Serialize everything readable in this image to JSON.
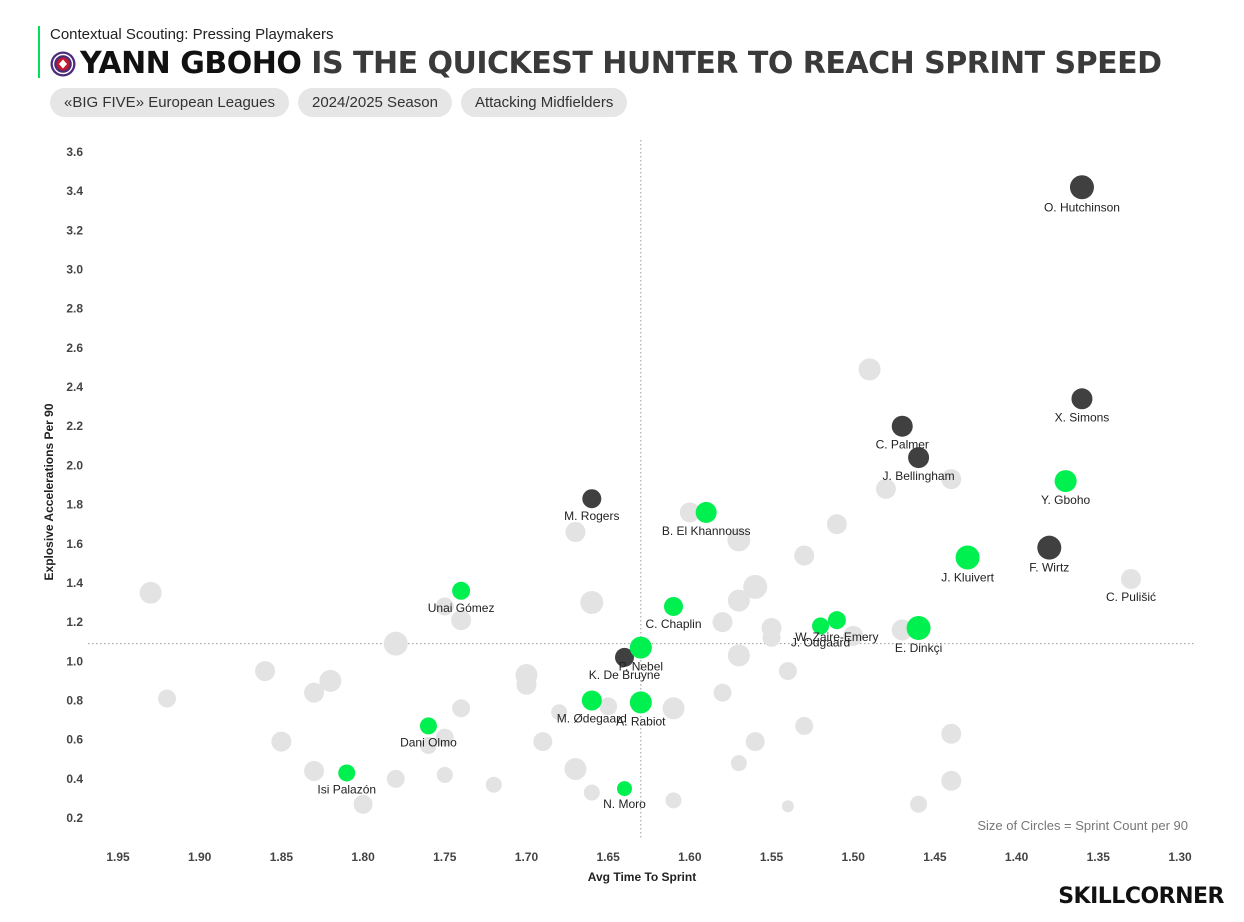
{
  "header": {
    "subtitle": "Contextual Scouting: Pressing Playmakers",
    "title_highlight": "YANN GBOHO",
    "title_rest": " IS THE QUICKEST HUNTER TO REACH SPRINT SPEED",
    "accent_color": "#00e05a"
  },
  "filters": [
    "«BIG FIVE» European Leagues",
    "2024/2025 Season",
    "Attacking Midfielders"
  ],
  "size_note": "Size of Circles = Sprint Count per 90",
  "brand": "SKILLCORNER",
  "chart_data": {
    "type": "scatter",
    "xlabel": "Avg Time To Sprint",
    "ylabel": "Explosive Accelerations Per 90",
    "xlim": [
      1.97,
      1.29
    ],
    "ylim": [
      0.16,
      3.66
    ],
    "x_reversed": true,
    "x_ticks": [
      "1.95",
      "1.90",
      "1.85",
      "1.80",
      "1.75",
      "1.70",
      "1.65",
      "1.60",
      "1.55",
      "1.50",
      "1.45",
      "1.40",
      "1.35",
      "1.30"
    ],
    "y_ticks": [
      "0.2",
      "0.4",
      "0.6",
      "0.8",
      "1.0",
      "1.2",
      "1.4",
      "1.6",
      "1.8",
      "2.0",
      "2.2",
      "2.4",
      "2.6",
      "2.8",
      "3.0",
      "3.2",
      "3.4",
      "3.6"
    ],
    "reference_lines": {
      "x": 1.63,
      "y": 1.09
    },
    "colors": {
      "highlight": "#00f050",
      "top": "#404040",
      "other": "#e3e3e3"
    },
    "highlighted": [
      {
        "name": "Y. Gboho",
        "x": 1.37,
        "y": 1.92,
        "size": 1.1
      },
      {
        "name": "J. Kluivert",
        "x": 1.43,
        "y": 1.53,
        "size": 1.2
      },
      {
        "name": "E. Dinkçi",
        "x": 1.46,
        "y": 1.17,
        "size": 1.2
      },
      {
        "name": "W. Zaire-Emery",
        "x": 1.51,
        "y": 1.21,
        "size": 0.9
      },
      {
        "name": "J. Odgaard",
        "x": 1.52,
        "y": 1.18,
        "size": 0.85
      },
      {
        "name": "B. El Khannouss",
        "x": 1.59,
        "y": 1.76,
        "size": 1.05
      },
      {
        "name": "C. Chaplin",
        "x": 1.61,
        "y": 1.28,
        "size": 0.95
      },
      {
        "name": "P. Nebel",
        "x": 1.63,
        "y": 1.07,
        "size": 1.1
      },
      {
        "name": "M. Ødegaard",
        "x": 1.66,
        "y": 0.8,
        "size": 1.0
      },
      {
        "name": "A. Rabiot",
        "x": 1.63,
        "y": 0.79,
        "size": 1.1
      },
      {
        "name": "Unai Gómez",
        "x": 1.74,
        "y": 1.36,
        "size": 0.9
      },
      {
        "name": "Dani Olmo",
        "x": 1.76,
        "y": 0.67,
        "size": 0.85
      },
      {
        "name": "Isi Palazón",
        "x": 1.81,
        "y": 0.43,
        "size": 0.85
      },
      {
        "name": "N. Moro",
        "x": 1.64,
        "y": 0.35,
        "size": 0.75
      }
    ],
    "top_players": [
      {
        "name": "O. Hutchinson",
        "x": 1.36,
        "y": 3.42,
        "size": 1.2
      },
      {
        "name": "X. Simons",
        "x": 1.36,
        "y": 2.34,
        "size": 1.05
      },
      {
        "name": "C. Palmer",
        "x": 1.47,
        "y": 2.2,
        "size": 1.05
      },
      {
        "name": "J. Bellingham",
        "x": 1.46,
        "y": 2.04,
        "size": 1.05
      },
      {
        "name": "F. Wirtz",
        "x": 1.38,
        "y": 1.58,
        "size": 1.2
      },
      {
        "name": "M. Rogers",
        "x": 1.66,
        "y": 1.83,
        "size": 0.95
      },
      {
        "name": "K. De Bruyne",
        "x": 1.64,
        "y": 1.02,
        "size": 0.95
      }
    ],
    "labeled_others": [
      {
        "name": "C. Pulišić",
        "x": 1.33,
        "y": 1.42,
        "size": 1.0
      }
    ],
    "others": [
      {
        "x": 1.93,
        "y": 1.35,
        "size": 1.1
      },
      {
        "x": 1.92,
        "y": 0.81,
        "size": 0.9
      },
      {
        "x": 1.86,
        "y": 0.95,
        "size": 1.0
      },
      {
        "x": 1.85,
        "y": 0.59,
        "size": 1.0
      },
      {
        "x": 1.83,
        "y": 0.84,
        "size": 1.0
      },
      {
        "x": 1.82,
        "y": 0.9,
        "size": 1.1
      },
      {
        "x": 1.83,
        "y": 0.44,
        "size": 1.0
      },
      {
        "x": 1.8,
        "y": 0.27,
        "size": 0.95
      },
      {
        "x": 1.78,
        "y": 1.09,
        "size": 1.2
      },
      {
        "x": 1.78,
        "y": 0.4,
        "size": 0.9
      },
      {
        "x": 1.75,
        "y": 1.28,
        "size": 0.9
      },
      {
        "x": 1.74,
        "y": 1.21,
        "size": 1.0
      },
      {
        "x": 1.74,
        "y": 0.76,
        "size": 0.9
      },
      {
        "x": 1.75,
        "y": 0.61,
        "size": 0.9
      },
      {
        "x": 1.76,
        "y": 0.57,
        "size": 0.85
      },
      {
        "x": 1.75,
        "y": 0.42,
        "size": 0.8
      },
      {
        "x": 1.72,
        "y": 0.37,
        "size": 0.8
      },
      {
        "x": 1.7,
        "y": 0.93,
        "size": 1.1
      },
      {
        "x": 1.7,
        "y": 0.88,
        "size": 1.0
      },
      {
        "x": 1.69,
        "y": 0.59,
        "size": 0.95
      },
      {
        "x": 1.68,
        "y": 0.74,
        "size": 0.8
      },
      {
        "x": 1.67,
        "y": 1.66,
        "size": 1.0
      },
      {
        "x": 1.66,
        "y": 1.3,
        "size": 1.15
      },
      {
        "x": 1.67,
        "y": 0.45,
        "size": 1.1
      },
      {
        "x": 1.66,
        "y": 0.33,
        "size": 0.8
      },
      {
        "x": 1.65,
        "y": 0.77,
        "size": 0.9
      },
      {
        "x": 1.61,
        "y": 0.76,
        "size": 1.1
      },
      {
        "x": 1.61,
        "y": 0.29,
        "size": 0.8
      },
      {
        "x": 1.6,
        "y": 1.76,
        "size": 1.0
      },
      {
        "x": 1.58,
        "y": 1.2,
        "size": 1.0
      },
      {
        "x": 1.58,
        "y": 0.84,
        "size": 0.9
      },
      {
        "x": 1.57,
        "y": 1.62,
        "size": 1.15
      },
      {
        "x": 1.57,
        "y": 1.31,
        "size": 1.1
      },
      {
        "x": 1.56,
        "y": 1.38,
        "size": 1.2
      },
      {
        "x": 1.57,
        "y": 1.03,
        "size": 1.1
      },
      {
        "x": 1.55,
        "y": 1.17,
        "size": 1.0
      },
      {
        "x": 1.55,
        "y": 1.12,
        "size": 0.9
      },
      {
        "x": 1.56,
        "y": 0.59,
        "size": 0.95
      },
      {
        "x": 1.57,
        "y": 0.48,
        "size": 0.8
      },
      {
        "x": 1.54,
        "y": 0.95,
        "size": 0.9
      },
      {
        "x": 1.53,
        "y": 1.54,
        "size": 1.0
      },
      {
        "x": 1.53,
        "y": 0.67,
        "size": 0.9
      },
      {
        "x": 1.54,
        "y": 0.26,
        "size": 0.6
      },
      {
        "x": 1.51,
        "y": 1.7,
        "size": 1.0
      },
      {
        "x": 1.5,
        "y": 1.13,
        "size": 1.0
      },
      {
        "x": 1.49,
        "y": 2.49,
        "size": 1.1
      },
      {
        "x": 1.48,
        "y": 1.88,
        "size": 1.0
      },
      {
        "x": 1.47,
        "y": 1.16,
        "size": 1.05
      },
      {
        "x": 1.44,
        "y": 1.93,
        "size": 1.0
      },
      {
        "x": 1.44,
        "y": 0.63,
        "size": 1.0
      },
      {
        "x": 1.44,
        "y": 0.39,
        "size": 1.0
      },
      {
        "x": 1.46,
        "y": 0.27,
        "size": 0.85
      }
    ]
  }
}
